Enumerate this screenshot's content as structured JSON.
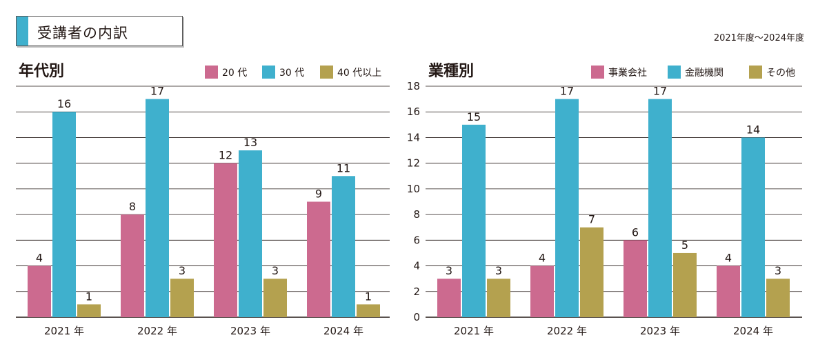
{
  "header": {
    "title": "受講者の内訳",
    "period": "2021年度～2024年度"
  },
  "colors": {
    "pink": "#cc6a8f",
    "blue": "#3fb0cd",
    "olive": "#b4a14f",
    "grid": "#231815",
    "title_accent": "#3fb0cd"
  },
  "chart_data": [
    {
      "type": "bar",
      "title": "年代別",
      "categories": [
        "2021 年",
        "2022 年",
        "2023 年",
        "2024 年"
      ],
      "series": [
        {
          "name": "20 代",
          "color": "#cc6a8f",
          "values": [
            4,
            8,
            12,
            9
          ]
        },
        {
          "name": "30 代",
          "color": "#3fb0cd",
          "values": [
            16,
            17,
            13,
            11
          ]
        },
        {
          "name": "40 代以上",
          "color": "#b4a14f",
          "values": [
            1,
            3,
            3,
            1
          ]
        }
      ],
      "ylim": [
        0,
        18
      ],
      "ytick_step": 2,
      "show_ytick_labels": false,
      "grid": true,
      "legend": "top-right"
    },
    {
      "type": "bar",
      "title": "業種別",
      "categories": [
        "2021 年",
        "2022 年",
        "2023 年",
        "2024 年"
      ],
      "series": [
        {
          "name": "事業会社",
          "color": "#cc6a8f",
          "values": [
            3,
            4,
            6,
            4
          ]
        },
        {
          "name": "金融機関",
          "color": "#3fb0cd",
          "values": [
            15,
            17,
            17,
            14
          ]
        },
        {
          "name": "その他",
          "color": "#b4a14f",
          "values": [
            3,
            7,
            5,
            3
          ]
        }
      ],
      "ylim": [
        0,
        18
      ],
      "ytick_step": 2,
      "yticks": [
        "0",
        "2",
        "4",
        "6",
        "8",
        "10",
        "12",
        "14",
        "16",
        "18"
      ],
      "show_ytick_labels": true,
      "grid": true,
      "legend": "top-right"
    }
  ]
}
